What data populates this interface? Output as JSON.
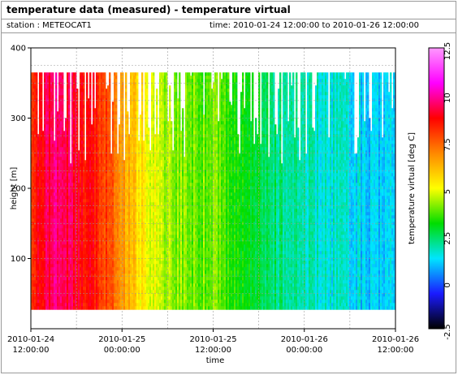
{
  "header": {
    "title": "temperature data (measured) - temperature virtual",
    "station": "station : METEOCAT1",
    "time_range": "time: 2010-01-24 12:00:00 to 2010-01-26 12:00:00"
  },
  "chart_data": {
    "type": "heatmap",
    "xlabel": "time",
    "ylabel": "height [m]",
    "colorbar_label": "temperature virtual [deg C]",
    "x_ticks": [
      {
        "t": 0,
        "line1": "2010-01-24",
        "line2": "12:00:00"
      },
      {
        "t": 12,
        "line1": "2010-01-25",
        "line2": "00:00:00"
      },
      {
        "t": 24,
        "line1": "2010-01-25",
        "line2": "12:00:00"
      },
      {
        "t": 36,
        "line1": "2010-01-26",
        "line2": "00:00:00"
      },
      {
        "t": 48,
        "line1": "2010-01-26",
        "line2": "12:00:00"
      }
    ],
    "xlim_hours": [
      0,
      48
    ],
    "ylim": [
      0,
      400
    ],
    "y_ticks": [
      100,
      200,
      300,
      400
    ],
    "clim": [
      -2.5,
      12.5
    ],
    "colorbar_ticks": [
      -2.5,
      0,
      2.5,
      5,
      7.5,
      10,
      12.5
    ],
    "height_range_m": [
      30,
      365
    ],
    "colormap": [
      "#000000",
      "#1a1aff",
      "#00e5ff",
      "#00dd00",
      "#ffff00",
      "#ff8800",
      "#ff0000",
      "#ff00ff",
      "#ff99ff"
    ],
    "temperature_by_hour": [
      {
        "hour": 0,
        "value": 8.3
      },
      {
        "hour": 3,
        "value": 9.5
      },
      {
        "hour": 6,
        "value": 9.0
      },
      {
        "hour": 9,
        "value": 8.2
      },
      {
        "hour": 12,
        "value": 6.8
      },
      {
        "hour": 15,
        "value": 5.2
      },
      {
        "hour": 18,
        "value": 4.3
      },
      {
        "hour": 21,
        "value": 4.0
      },
      {
        "hour": 24,
        "value": 3.9
      },
      {
        "hour": 27,
        "value": 3.4
      },
      {
        "hour": 30,
        "value": 2.7
      },
      {
        "hour": 33,
        "value": 2.2
      },
      {
        "hour": 36,
        "value": 1.9
      },
      {
        "hour": 39,
        "value": 1.6
      },
      {
        "hour": 42,
        "value": 1.3
      },
      {
        "hour": 45,
        "value": 1.0
      },
      {
        "hour": 48,
        "value": 1.0
      }
    ],
    "grid": true,
    "colorbar_position": "right"
  }
}
